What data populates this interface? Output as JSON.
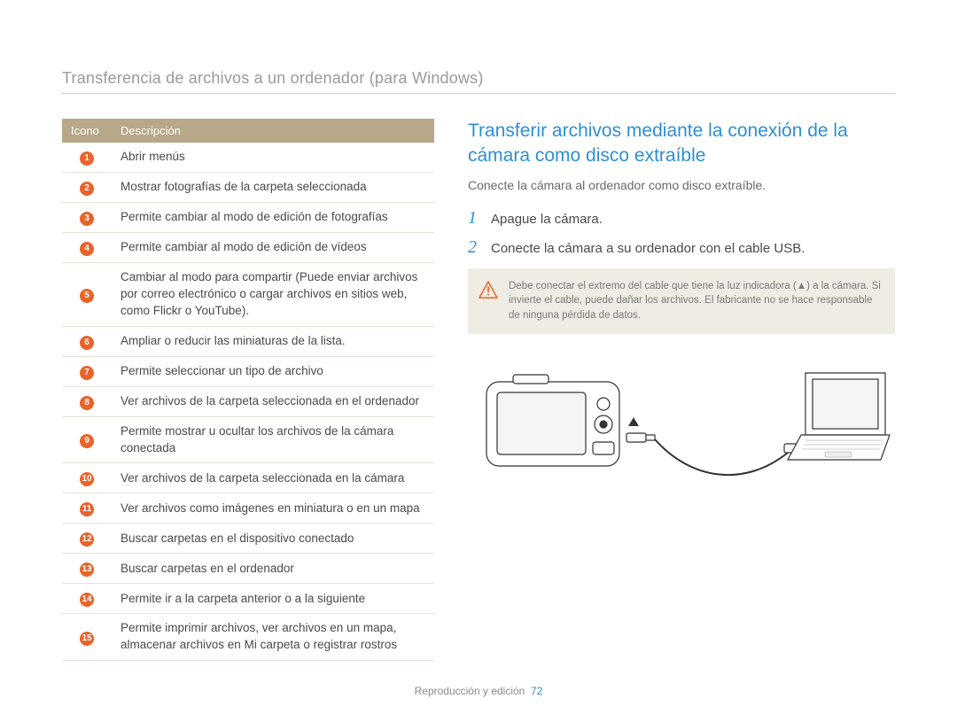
{
  "page_title": "Transferencia de archivos a un ordenador (para Windows)",
  "table": {
    "header_icon": "Icono",
    "header_desc": "Descripción",
    "rows": [
      {
        "n": "1",
        "desc": "Abrir menús"
      },
      {
        "n": "2",
        "desc": "Mostrar fotografías de la carpeta seleccionada"
      },
      {
        "n": "3",
        "desc": "Permite cambiar al modo de edición de fotografías"
      },
      {
        "n": "4",
        "desc": "Permite cambiar al modo de edición de vídeos"
      },
      {
        "n": "5",
        "desc": "Cambiar al modo para compartir (Puede enviar archivos por correo electrónico o cargar archivos en sitios web, como Flickr o YouTube)."
      },
      {
        "n": "6",
        "desc": "Ampliar o reducir las miniaturas de la lista."
      },
      {
        "n": "7",
        "desc": "Permite seleccionar un tipo de archivo"
      },
      {
        "n": "8",
        "desc": "Ver archivos de la carpeta seleccionada en el ordenador"
      },
      {
        "n": "9",
        "desc": "Permite mostrar u ocultar los archivos de la cámara conectada"
      },
      {
        "n": "10",
        "desc": "Ver archivos de la carpeta seleccionada en la cámara"
      },
      {
        "n": "11",
        "desc": "Ver archivos como imágenes en miniatura o en un mapa"
      },
      {
        "n": "12",
        "desc": "Buscar carpetas en el dispositivo conectado"
      },
      {
        "n": "13",
        "desc": "Buscar carpetas en el ordenador"
      },
      {
        "n": "14",
        "desc": "Permite ir a la carpeta anterior o a la siguiente"
      },
      {
        "n": "15",
        "desc": "Permite imprimir archivos, ver archivos en un mapa, almacenar archivos en Mi carpeta o registrar rostros"
      }
    ]
  },
  "right": {
    "heading": "Transferir archivos mediante la conexión de la cámara como disco extraíble",
    "sub": "Conecte la cámara al ordenador como disco extraíble.",
    "steps": [
      {
        "num": "1",
        "text": "Apague la cámara."
      },
      {
        "num": "2",
        "text": "Conecte la cámara a su ordenador con el cable USB."
      }
    ],
    "note": "Debe conectar el extremo del cable que tiene la luz indicadora (▲) a la cámara. Si invierte el cable, puede dañar los archivos. El fabricante no se hace responsable de ninguna pérdida de datos."
  },
  "footer": {
    "section": "Reproducción y edición",
    "page": "72"
  },
  "colors": {
    "accent_orange": "#e9632a",
    "accent_blue": "#2e8fd4",
    "table_header_bg": "#b7a889",
    "note_bg": "#efece3"
  }
}
